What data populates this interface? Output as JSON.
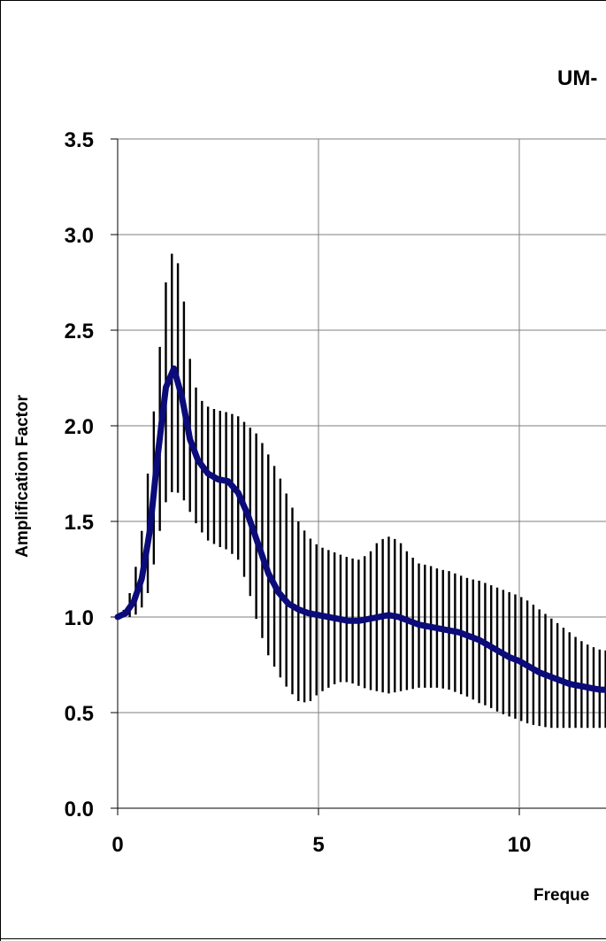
{
  "chart_data": {
    "type": "line",
    "title": "UM-",
    "xlabel": "Freque",
    "ylabel": "Amplification Factor",
    "xlim": [
      0,
      12.3
    ],
    "ylim": [
      0,
      3.5
    ],
    "xticks": [
      "0",
      "5",
      "10"
    ],
    "xtick_values": [
      0,
      5,
      10
    ],
    "yticks": [
      "0.0",
      "0.5",
      "1.0",
      "1.5",
      "2.0",
      "2.5",
      "3.0",
      "3.5"
    ],
    "ytick_values": [
      0,
      0.5,
      1.0,
      1.5,
      2.0,
      2.5,
      3.0,
      3.5
    ],
    "grid": true,
    "colors": {
      "mean_line": "#0b0b7a",
      "error_bars": "#000000",
      "grid": "#7f7f7f"
    },
    "series": [
      {
        "kind": "mean",
        "x": [
          0,
          0.2,
          0.4,
          0.6,
          0.8,
          1.0,
          1.2,
          1.4,
          1.6,
          1.8,
          2.0,
          2.25,
          2.5,
          2.75,
          3.0,
          3.25,
          3.5,
          3.75,
          4.0,
          4.25,
          4.5,
          4.75,
          5.0,
          5.25,
          5.5,
          5.75,
          6.0,
          6.25,
          6.5,
          6.75,
          7.0,
          7.25,
          7.5,
          7.75,
          8.0,
          8.25,
          8.5,
          8.75,
          9.0,
          9.25,
          9.5,
          9.75,
          10.0,
          10.25,
          10.5,
          10.75,
          11.0,
          11.25,
          11.5,
          11.75,
          12.0,
          12.3
        ],
        "y": [
          1.0,
          1.02,
          1.08,
          1.2,
          1.45,
          1.85,
          2.2,
          2.3,
          2.15,
          1.93,
          1.82,
          1.75,
          1.72,
          1.71,
          1.65,
          1.53,
          1.38,
          1.23,
          1.13,
          1.07,
          1.04,
          1.02,
          1.01,
          1.0,
          0.99,
          0.98,
          0.98,
          0.99,
          1.0,
          1.01,
          1.0,
          0.98,
          0.96,
          0.95,
          0.94,
          0.93,
          0.92,
          0.9,
          0.88,
          0.85,
          0.82,
          0.79,
          0.77,
          0.74,
          0.71,
          0.69,
          0.67,
          0.65,
          0.64,
          0.63,
          0.62,
          0.62
        ]
      },
      {
        "kind": "error_bar_upper",
        "x": [
          0,
          0.2,
          0.4,
          0.6,
          0.8,
          1.0,
          1.2,
          1.4,
          1.6,
          1.8,
          2.0,
          2.25,
          2.5,
          2.75,
          3.0,
          3.25,
          3.5,
          3.75,
          4.0,
          4.25,
          4.5,
          4.75,
          5.0,
          5.25,
          5.5,
          5.75,
          6.0,
          6.25,
          6.5,
          6.75,
          7.0,
          7.25,
          7.5,
          7.75,
          8.0,
          8.25,
          8.5,
          8.75,
          9.0,
          9.25,
          9.5,
          9.75,
          10.0,
          10.25,
          10.5,
          10.75,
          11.0,
          11.25,
          11.5,
          11.75,
          12.0,
          12.3
        ],
        "y": [
          1.0,
          1.05,
          1.2,
          1.45,
          1.85,
          2.3,
          2.75,
          2.95,
          2.75,
          2.35,
          2.15,
          2.1,
          2.08,
          2.07,
          2.05,
          2.0,
          1.95,
          1.85,
          1.75,
          1.62,
          1.5,
          1.42,
          1.37,
          1.35,
          1.33,
          1.31,
          1.3,
          1.33,
          1.4,
          1.42,
          1.4,
          1.33,
          1.28,
          1.27,
          1.25,
          1.24,
          1.22,
          1.2,
          1.19,
          1.17,
          1.15,
          1.13,
          1.11,
          1.08,
          1.04,
          1.0,
          0.96,
          0.92,
          0.88,
          0.85,
          0.83,
          0.82
        ]
      },
      {
        "kind": "error_bar_lower",
        "x": [
          0,
          0.2,
          0.4,
          0.6,
          0.8,
          1.0,
          1.2,
          1.4,
          1.6,
          1.8,
          2.0,
          2.25,
          2.5,
          2.75,
          3.0,
          3.25,
          3.5,
          3.75,
          4.0,
          4.25,
          4.5,
          4.75,
          5.0,
          5.25,
          5.5,
          5.75,
          6.0,
          6.25,
          6.5,
          6.75,
          7.0,
          7.25,
          7.5,
          7.75,
          8.0,
          8.25,
          8.5,
          8.75,
          9.0,
          9.25,
          9.5,
          9.75,
          10.0,
          10.25,
          10.5,
          10.75,
          11.0,
          11.25,
          11.5,
          11.75,
          12.0,
          12.3
        ],
        "y": [
          1.0,
          1.0,
          1.0,
          1.05,
          1.15,
          1.4,
          1.6,
          1.67,
          1.63,
          1.55,
          1.47,
          1.4,
          1.37,
          1.35,
          1.3,
          1.15,
          0.95,
          0.8,
          0.7,
          0.62,
          0.56,
          0.55,
          0.6,
          0.63,
          0.66,
          0.66,
          0.64,
          0.62,
          0.61,
          0.6,
          0.61,
          0.62,
          0.63,
          0.63,
          0.63,
          0.62,
          0.6,
          0.58,
          0.55,
          0.53,
          0.5,
          0.48,
          0.46,
          0.44,
          0.43,
          0.42,
          0.42,
          0.42,
          0.42,
          0.42,
          0.42,
          0.42
        ]
      }
    ]
  }
}
